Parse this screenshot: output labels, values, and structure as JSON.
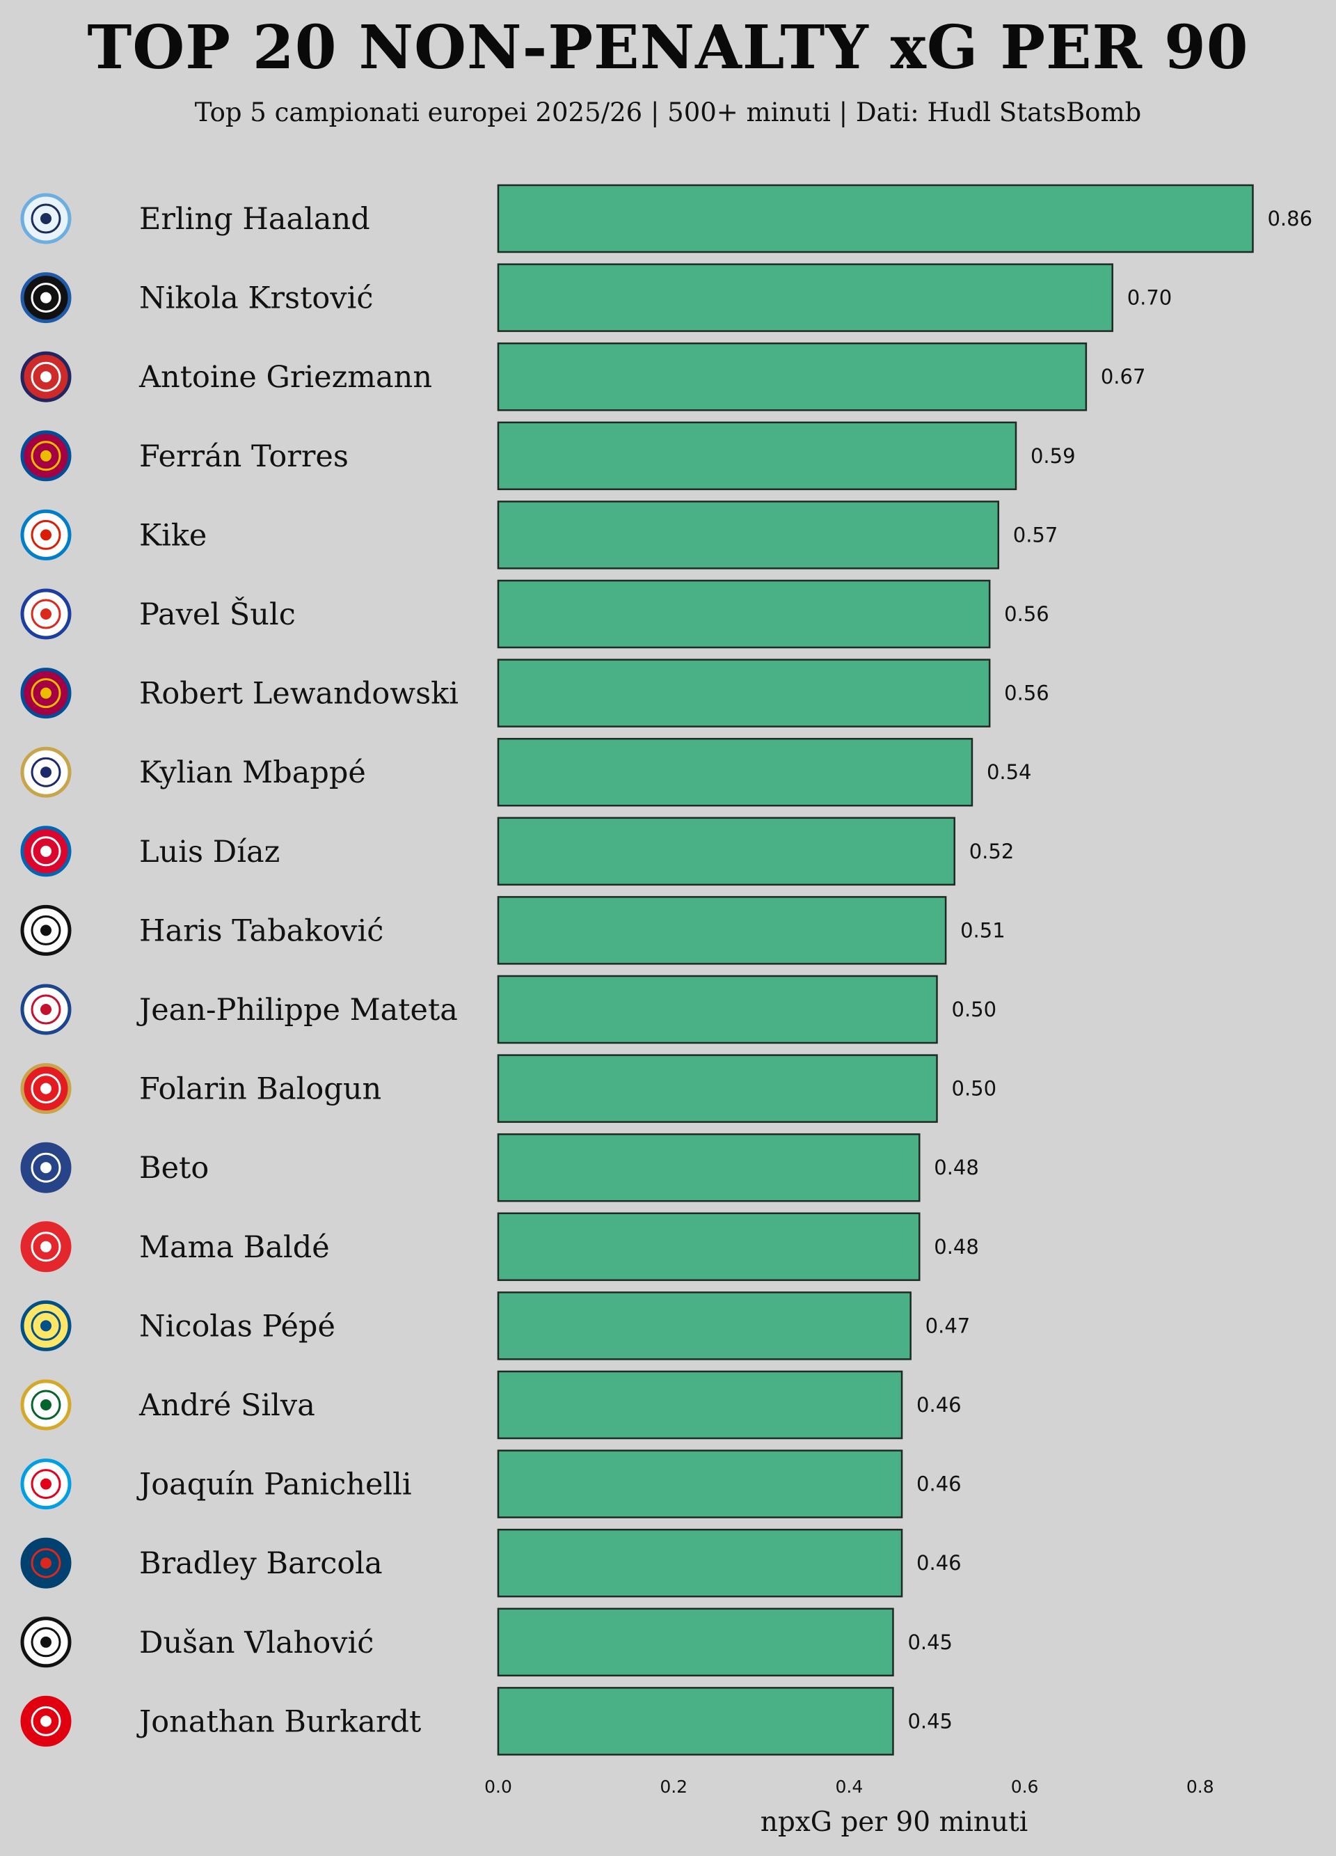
{
  "header": {
    "title": "TOP 20 NON-PENALTY xG PER 90",
    "subtitle": "Top 5 campionati europei 2025/26 | 500+ minuti | Dati: Hudl StatsBomb"
  },
  "colors": {
    "background": "#d3d3d3",
    "bar_fill": "#4ab186",
    "bar_stroke": "#1f2a24",
    "text": "#111111"
  },
  "chart_data": {
    "type": "bar",
    "orientation": "horizontal",
    "title": "TOP 20 NON-PENALTY xG PER 90",
    "subtitle": "Top 5 campionati europei 2025/26 | 500+ minuti | Dati: Hudl StatsBomb",
    "xlabel": "npxG per 90 minuti",
    "ylabel": "",
    "xlim": [
      0,
      0.9
    ],
    "xticks": [
      0.0,
      0.2,
      0.4,
      0.6,
      0.8
    ],
    "xtick_labels": [
      "0.0",
      "0.2",
      "0.4",
      "0.6",
      "0.8"
    ],
    "grid": false,
    "legend": "none",
    "categories": [
      "Erling Haaland",
      "Nikola Krstović",
      "Antoine Griezmann",
      "Ferrán Torres",
      "Kike",
      "Pavel Šulc",
      "Robert Lewandowski",
      "Kylian Mbappé",
      "Luis Díaz",
      "Haris Tabaković",
      "Jean-Philippe Mateta",
      "Folarin Balogun",
      "Beto",
      "Mama Baldé",
      "Nicolas Pépé",
      "André Silva",
      "Joaquín Panichelli",
      "Bradley Barcola",
      "Dušan Vlahović",
      "Jonathan Burkardt"
    ],
    "values": [
      0.86,
      0.7,
      0.67,
      0.59,
      0.57,
      0.56,
      0.56,
      0.54,
      0.52,
      0.51,
      0.5,
      0.5,
      0.48,
      0.48,
      0.47,
      0.46,
      0.46,
      0.46,
      0.45,
      0.45
    ],
    "value_labels": [
      "0.86",
      "0.70",
      "0.67",
      "0.59",
      "0.57",
      "0.56",
      "0.56",
      "0.54",
      "0.52",
      "0.51",
      "0.50",
      "0.50",
      "0.48",
      "0.48",
      "0.47",
      "0.46",
      "0.46",
      "0.46",
      "0.45",
      "0.45"
    ],
    "badges": [
      {
        "icon": "manchester-city-badge",
        "bg": "#e8f3fb",
        "ring": "#6caee0",
        "fg": "#1c2c5b"
      },
      {
        "icon": "atalanta-badge",
        "bg": "#111111",
        "ring": "#1e5aa8",
        "fg": "#ffffff"
      },
      {
        "icon": "atletico-madrid-badge",
        "bg": "#ce2a2a",
        "ring": "#23265e",
        "fg": "#ffffff"
      },
      {
        "icon": "barcelona-badge",
        "bg": "#a50044",
        "ring": "#004d98",
        "fg": "#edbb00"
      },
      {
        "icon": "espanyol-badge",
        "bg": "#ffffff",
        "ring": "#007fc8",
        "fg": "#d81e05"
      },
      {
        "icon": "lyon-badge",
        "bg": "#ffffff",
        "ring": "#1b3ea0",
        "fg": "#da291c"
      },
      {
        "icon": "barcelona-badge",
        "bg": "#a50044",
        "ring": "#004d98",
        "fg": "#edbb00"
      },
      {
        "icon": "real-madrid-badge",
        "bg": "#ffffff",
        "ring": "#c8a44a",
        "fg": "#1b2a6b"
      },
      {
        "icon": "bayern-munich-badge",
        "bg": "#dc052d",
        "ring": "#0066b2",
        "fg": "#ffffff"
      },
      {
        "icon": "gladbach-badge",
        "bg": "#ffffff",
        "ring": "#111111",
        "fg": "#111111"
      },
      {
        "icon": "crystal-palace-badge",
        "bg": "#ffffff",
        "ring": "#1b458f",
        "fg": "#c4122e"
      },
      {
        "icon": "monaco-badge",
        "bg": "#e51b22",
        "ring": "#c8a44a",
        "fg": "#ffffff"
      },
      {
        "icon": "everton-badge",
        "bg": "#274488",
        "ring": "#274488",
        "fg": "#ffffff"
      },
      {
        "icon": "brest-badge",
        "bg": "#e4262d",
        "ring": "#e4262d",
        "fg": "#ffffff"
      },
      {
        "icon": "villarreal-badge",
        "bg": "#ffe667",
        "ring": "#005187",
        "fg": "#005187"
      },
      {
        "icon": "elche-badge",
        "bg": "#ffffff",
        "ring": "#d4a92a",
        "fg": "#05642c"
      },
      {
        "icon": "strasbourg-badge",
        "bg": "#ffffff",
        "ring": "#009fe3",
        "fg": "#e2001a"
      },
      {
        "icon": "psg-badge",
        "bg": "#004170",
        "ring": "#004170",
        "fg": "#da291c"
      },
      {
        "icon": "juventus-badge",
        "bg": "#ffffff",
        "ring": "#111111",
        "fg": "#111111"
      },
      {
        "icon": "eintracht-frankfurt-badge",
        "bg": "#e1000f",
        "ring": "#e1000f",
        "fg": "#ffffff"
      }
    ]
  }
}
